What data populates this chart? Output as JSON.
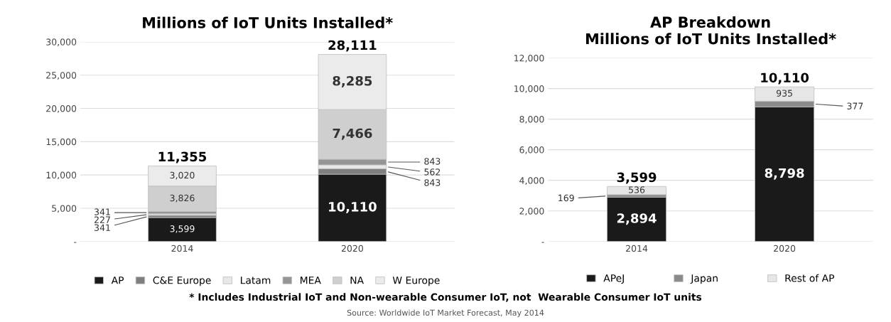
{
  "chart_data": [
    {
      "type": "bar",
      "stacked": true,
      "title": "Millions of IoT Units Installed*",
      "categories": [
        "2014",
        "2020"
      ],
      "series": [
        {
          "name": "AP",
          "color": "#1a1a1a",
          "values": [
            3599,
            10110
          ],
          "value_labels": [
            "3,599",
            "10,110"
          ]
        },
        {
          "name": "C&E Europe",
          "color": "#7f7f7f",
          "values": [
            341,
            843
          ],
          "value_labels": [
            "341",
            "843"
          ]
        },
        {
          "name": "Latam",
          "color": "#e8e8e8",
          "values": [
            227,
            562
          ],
          "value_labels": [
            "227",
            "562"
          ]
        },
        {
          "name": "MEA",
          "color": "#959595",
          "values": [
            341,
            843
          ],
          "value_labels": [
            "341",
            "843"
          ]
        },
        {
          "name": "NA",
          "color": "#cfcfcf",
          "values": [
            3826,
            7466
          ],
          "value_labels": [
            "3,826",
            "7,466"
          ]
        },
        {
          "name": "W Europe",
          "color": "#ebebeb",
          "values": [
            3020,
            8285
          ],
          "value_labels": [
            "3,020",
            "8,285"
          ]
        }
      ],
      "totals": [
        "11,355",
        "28,111"
      ],
      "ylim": [
        0,
        30000
      ],
      "yticks": [
        {
          "value": 0,
          "label": "-"
        },
        {
          "value": 5000,
          "label": "5,000"
        },
        {
          "value": 10000,
          "label": "10,000"
        },
        {
          "value": 15000,
          "label": "15,000"
        },
        {
          "value": 20000,
          "label": "20,000"
        },
        {
          "value": 25000,
          "label": "25,000"
        },
        {
          "value": 30000,
          "label": "30,000"
        }
      ],
      "grid": "y",
      "legend": "bottom",
      "annotations": [
        "* Includes Industrial IoT and Non-wearable Consumer IoT, not  Wearable Consumer IoT units",
        "Source: Worldwide IoT Market Forecast, May 2014"
      ]
    },
    {
      "type": "bar",
      "stacked": true,
      "title": "AP Breakdown\nMillions of IoT Units Installed*",
      "categories": [
        "2014",
        "2020"
      ],
      "series": [
        {
          "name": "APeJ",
          "color": "#1a1a1a",
          "values": [
            2894,
            8798
          ],
          "value_labels": [
            "2,894",
            "8,798"
          ]
        },
        {
          "name": "Japan",
          "color": "#8a8a8a",
          "values": [
            169,
            377
          ],
          "value_labels": [
            "169",
            "377"
          ]
        },
        {
          "name": "Rest of AP",
          "color": "#e6e6e6",
          "values": [
            536,
            935
          ],
          "value_labels": [
            "536",
            "935"
          ]
        }
      ],
      "totals": [
        "3,599",
        "10,110"
      ],
      "ylim": [
        0,
        12000
      ],
      "yticks": [
        {
          "value": 0,
          "label": "-"
        },
        {
          "value": 2000,
          "label": "2,000"
        },
        {
          "value": 4000,
          "label": "4,000"
        },
        {
          "value": 6000,
          "label": "6,000"
        },
        {
          "value": 8000,
          "label": "8,000"
        },
        {
          "value": 10000,
          "label": "10,000"
        },
        {
          "value": 12000,
          "label": "12,000"
        }
      ],
      "grid": "y",
      "legend": "bottom"
    }
  ]
}
